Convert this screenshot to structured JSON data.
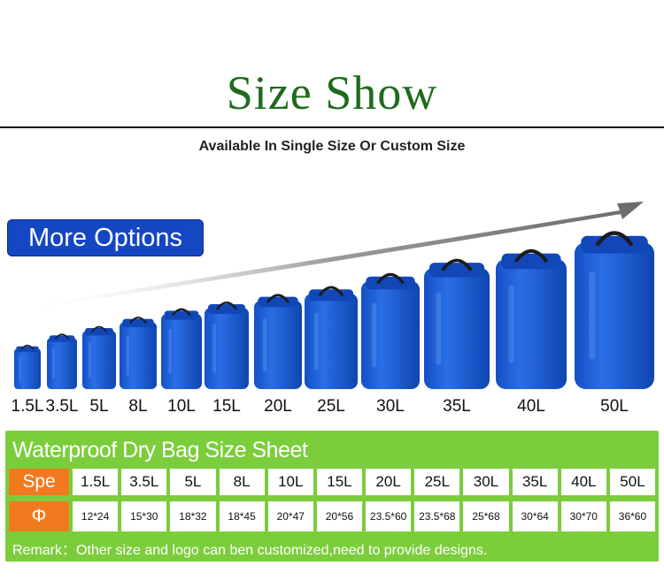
{
  "header": {
    "title": "Size Show",
    "subtitle": "Available In Single Size Or Custom Size"
  },
  "more_button": {
    "label": "More Options"
  },
  "bags": [
    "1.5L",
    "3.5L",
    "5L",
    "8L",
    "10L",
    "15L",
    "20L",
    "25L",
    "30L",
    "35L",
    "40L",
    "50L"
  ],
  "sheet": {
    "title": "Waterproof Dry Bag Size Sheet",
    "spec_header": "Spe",
    "dim_header": "Φ",
    "sizes": [
      "1.5L",
      "3.5L",
      "5L",
      "8L",
      "10L",
      "15L",
      "20L",
      "25L",
      "30L",
      "35L",
      "40L",
      "50L"
    ],
    "dimensions": [
      "12*24",
      "15*30",
      "18*32",
      "18*45",
      "20*47",
      "20*56",
      "23.5*60",
      "23.5*68",
      "25*68",
      "30*64",
      "30*70",
      "36*60"
    ],
    "remark": "Remark：Other size and logo can ben customized,need to provide designs."
  },
  "colors": {
    "title_green": "#1e6b1e",
    "button_blue": "#1547c4",
    "bag_blue": "#1a5fd6",
    "sheet_green": "#7ccd3c",
    "header_orange": "#f17a1e"
  }
}
